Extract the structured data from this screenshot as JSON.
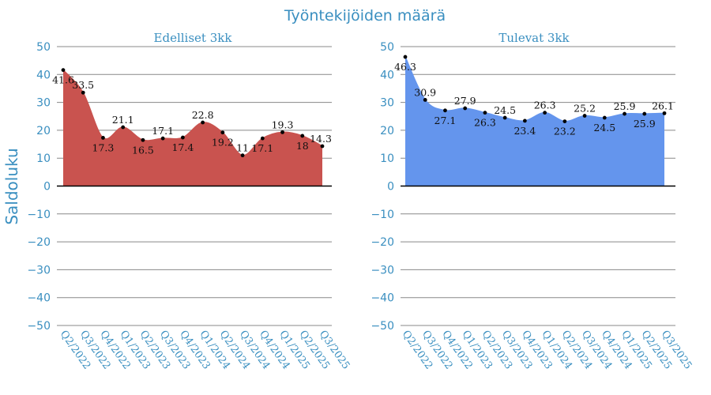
{
  "title": "Työntekijöiden määrä",
  "ylabel": "Saldoluku",
  "chart_data": [
    {
      "type": "area",
      "title": "Edelliset 3kk",
      "color": "#c9534f",
      "categories": [
        "Q2/2022",
        "Q3/2022",
        "Q4/2022",
        "Q1/2023",
        "Q2/2023",
        "Q3/2023",
        "Q4/2023",
        "Q1/2024",
        "Q2/2024",
        "Q3/2024",
        "Q4/2024",
        "Q1/2025",
        "Q2/2025",
        "Q3/2025"
      ],
      "values": [
        41.6,
        33.5,
        17.3,
        21.1,
        16.5,
        17.1,
        17.4,
        22.8,
        19.2,
        11,
        17.1,
        19.3,
        18,
        14.3
      ],
      "ylim": [
        -50,
        50
      ],
      "yticks": [
        50,
        40,
        30,
        20,
        10,
        0,
        -10,
        -20,
        -30,
        -40,
        -50
      ],
      "ytick_labels": [
        "50",
        "40",
        "30",
        "20",
        "10",
        "0",
        "−10",
        "−20",
        "−30",
        "−40",
        "−50"
      ],
      "grid": true
    },
    {
      "type": "area",
      "title": "Tulevat 3kk",
      "color": "#6495ed",
      "categories": [
        "Q2/2022",
        "Q3/2022",
        "Q4/2022",
        "Q1/2023",
        "Q2/2023",
        "Q3/2023",
        "Q4/2023",
        "Q1/2024",
        "Q2/2024",
        "Q3/2024",
        "Q4/2024",
        "Q1/2025",
        "Q2/2025",
        "Q3/2025"
      ],
      "values": [
        46.3,
        30.9,
        27.1,
        27.9,
        26.3,
        24.5,
        23.4,
        26.3,
        23.2,
        25.2,
        24.5,
        25.9,
        25.9,
        26.1
      ],
      "ylim": [
        -50,
        50
      ],
      "yticks": [
        50,
        40,
        30,
        20,
        10,
        0,
        -10,
        -20,
        -30,
        -40,
        -50
      ],
      "ytick_labels": [
        "50",
        "40",
        "30",
        "20",
        "10",
        "0",
        "−10",
        "−20",
        "−30",
        "−40",
        "−50"
      ],
      "grid": true
    }
  ]
}
